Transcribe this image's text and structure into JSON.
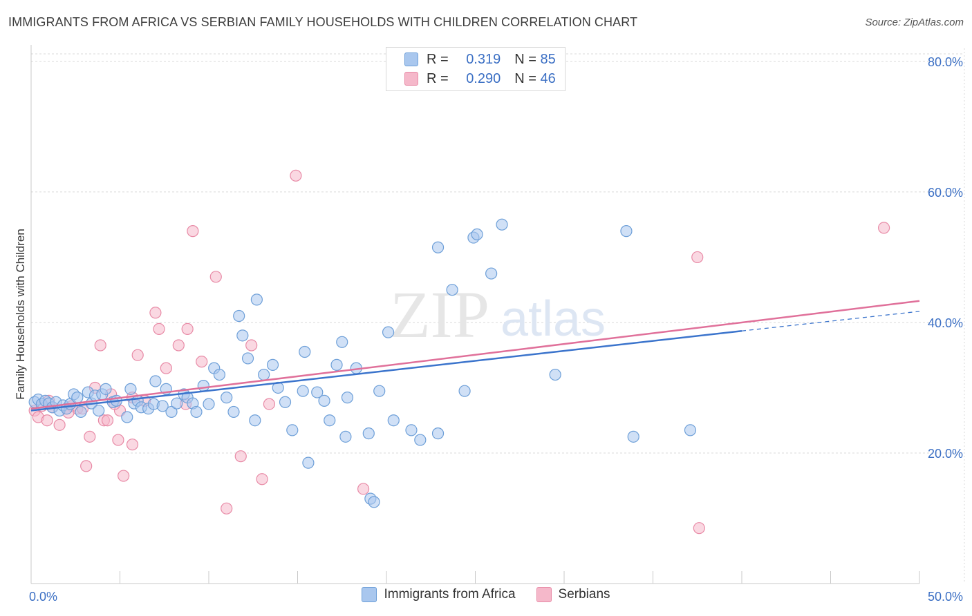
{
  "header": {
    "title": "IMMIGRANTS FROM AFRICA VS SERBIAN FAMILY HOUSEHOLDS WITH CHILDREN CORRELATION CHART",
    "source": "Source: ZipAtlas.com"
  },
  "watermark": {
    "zip": "ZIP",
    "atlas": "atlas"
  },
  "legend_top": {
    "rows": [
      {
        "r_label": "R =",
        "r_value": "0.319",
        "n_label": "N =",
        "n_value": "85"
      },
      {
        "r_label": "R =",
        "r_value": "0.290",
        "n_label": "N =",
        "n_value": "46"
      }
    ]
  },
  "legend_bottom": {
    "items": [
      {
        "label": "Immigrants from Africa"
      },
      {
        "label": "Serbians"
      }
    ]
  },
  "colors": {
    "blue_fill": "#a9c7ee",
    "blue_stroke": "#6d9fd8",
    "blue_line": "#3b74cc",
    "pink_fill": "#f5b8ca",
    "pink_stroke": "#e88aa6",
    "pink_line": "#e0709a",
    "axis_label": "#3b6fc4",
    "grid": "#d9d9d9"
  },
  "chart_data": {
    "type": "scatter",
    "title": "IMMIGRANTS FROM AFRICA VS SERBIAN FAMILY HOUSEHOLDS WITH CHILDREN CORRELATION CHART",
    "xlabel": "",
    "ylabel": "Family Households with Children",
    "xlim": [
      0,
      50
    ],
    "ylim": [
      0,
      82
    ],
    "x_tick_labels": [
      {
        "value": 0,
        "label": "0.0%"
      },
      {
        "value": 50,
        "label": "50.0%"
      }
    ],
    "y_tick_labels": [
      {
        "value": 20,
        "label": "20.0%"
      },
      {
        "value": 40,
        "label": "40.0%"
      },
      {
        "value": 60,
        "label": "60.0%"
      },
      {
        "value": 80,
        "label": "80.0%"
      }
    ],
    "series": [
      {
        "name": "Immigrants from Africa",
        "R": 0.319,
        "N": 85,
        "trend": {
          "x0": 0,
          "y0": 26.5,
          "x1": 40,
          "y1": 38.7,
          "dash_to_x": 50,
          "dash_to_y": 41.7
        },
        "points": [
          [
            0.2,
            27.8
          ],
          [
            0.4,
            28.2
          ],
          [
            0.6,
            27.5
          ],
          [
            0.8,
            28.0
          ],
          [
            1.0,
            27.6
          ],
          [
            1.2,
            27.0
          ],
          [
            1.4,
            27.8
          ],
          [
            1.6,
            26.5
          ],
          [
            1.8,
            27.3
          ],
          [
            2.0,
            26.8
          ],
          [
            2.2,
            27.5
          ],
          [
            2.4,
            29.0
          ],
          [
            2.6,
            28.5
          ],
          [
            2.8,
            26.3
          ],
          [
            3.2,
            29.3
          ],
          [
            3.4,
            27.6
          ],
          [
            3.6,
            28.8
          ],
          [
            3.8,
            26.5
          ],
          [
            4.0,
            29.0
          ],
          [
            4.2,
            29.8
          ],
          [
            4.6,
            27.8
          ],
          [
            4.8,
            28.0
          ],
          [
            5.4,
            25.5
          ],
          [
            5.6,
            29.8
          ],
          [
            5.8,
            27.6
          ],
          [
            6.0,
            28.0
          ],
          [
            6.2,
            27.0
          ],
          [
            6.6,
            26.8
          ],
          [
            6.9,
            27.5
          ],
          [
            7.4,
            27.2
          ],
          [
            7.6,
            29.8
          ],
          [
            7.0,
            31.0
          ],
          [
            7.9,
            26.3
          ],
          [
            8.2,
            27.6
          ],
          [
            8.6,
            29.0
          ],
          [
            8.8,
            28.5
          ],
          [
            9.1,
            27.6
          ],
          [
            9.3,
            26.3
          ],
          [
            9.7,
            30.3
          ],
          [
            10.0,
            27.5
          ],
          [
            10.3,
            33.0
          ],
          [
            10.6,
            32.0
          ],
          [
            11.0,
            28.5
          ],
          [
            11.4,
            26.3
          ],
          [
            11.7,
            41.0
          ],
          [
            11.9,
            38.0
          ],
          [
            12.2,
            34.5
          ],
          [
            12.6,
            25.0
          ],
          [
            12.7,
            43.5
          ],
          [
            13.1,
            32.0
          ],
          [
            13.6,
            33.5
          ],
          [
            13.9,
            30.0
          ],
          [
            14.3,
            27.8
          ],
          [
            14.7,
            23.5
          ],
          [
            15.3,
            29.5
          ],
          [
            15.4,
            35.5
          ],
          [
            15.6,
            18.5
          ],
          [
            16.1,
            29.3
          ],
          [
            16.5,
            28.0
          ],
          [
            16.8,
            25.0
          ],
          [
            17.2,
            33.5
          ],
          [
            17.5,
            37.0
          ],
          [
            17.7,
            22.5
          ],
          [
            17.8,
            28.5
          ],
          [
            18.3,
            33.0
          ],
          [
            19.0,
            23.0
          ],
          [
            19.1,
            13.0
          ],
          [
            19.3,
            12.5
          ],
          [
            19.6,
            29.5
          ],
          [
            20.1,
            38.5
          ],
          [
            20.4,
            25.0
          ],
          [
            21.4,
            23.5
          ],
          [
            21.9,
            22.0
          ],
          [
            22.9,
            23.0
          ],
          [
            22.9,
            51.5
          ],
          [
            23.7,
            45.0
          ],
          [
            24.4,
            29.5
          ],
          [
            24.9,
            53.0
          ],
          [
            25.1,
            53.5
          ],
          [
            25.9,
            47.5
          ],
          [
            26.5,
            55.0
          ],
          [
            29.5,
            32.0
          ],
          [
            33.5,
            54.0
          ],
          [
            33.9,
            22.5
          ],
          [
            37.1,
            23.5
          ]
        ]
      },
      {
        "name": "Serbians",
        "R": 0.29,
        "N": 46,
        "trend": {
          "x0": 0,
          "y0": 26.8,
          "x1": 50,
          "y1": 43.3
        },
        "points": [
          [
            0.2,
            26.5
          ],
          [
            0.4,
            25.5
          ],
          [
            0.6,
            27.2
          ],
          [
            0.9,
            25.0
          ],
          [
            1.2,
            27.0
          ],
          [
            1.6,
            24.3
          ],
          [
            2.0,
            26.8
          ],
          [
            2.3,
            27.2
          ],
          [
            2.6,
            26.8
          ],
          [
            2.9,
            26.8
          ],
          [
            3.1,
            18.0
          ],
          [
            3.3,
            22.5
          ],
          [
            3.6,
            30.0
          ],
          [
            3.9,
            36.5
          ],
          [
            4.1,
            25.0
          ],
          [
            4.3,
            25.0
          ],
          [
            4.5,
            29.0
          ],
          [
            4.9,
            22.0
          ],
          [
            5.0,
            26.5
          ],
          [
            5.2,
            16.5
          ],
          [
            5.7,
            21.3
          ],
          [
            5.7,
            28.5
          ],
          [
            6.0,
            35.0
          ],
          [
            6.4,
            28.0
          ],
          [
            7.0,
            41.5
          ],
          [
            7.2,
            39.0
          ],
          [
            7.6,
            33.0
          ],
          [
            8.3,
            36.5
          ],
          [
            8.7,
            27.5
          ],
          [
            8.8,
            39.0
          ],
          [
            9.1,
            54.0
          ],
          [
            9.6,
            34.0
          ],
          [
            10.4,
            47.0
          ],
          [
            11.0,
            11.5
          ],
          [
            11.8,
            19.5
          ],
          [
            12.4,
            36.5
          ],
          [
            13.0,
            16.0
          ],
          [
            13.4,
            27.5
          ],
          [
            14.9,
            62.5
          ],
          [
            18.7,
            14.5
          ],
          [
            37.5,
            50.0
          ],
          [
            37.6,
            8.5
          ],
          [
            48.0,
            54.5
          ],
          [
            2.1,
            26.2
          ],
          [
            4.7,
            27.5
          ],
          [
            1.0,
            28.0
          ]
        ]
      }
    ]
  }
}
